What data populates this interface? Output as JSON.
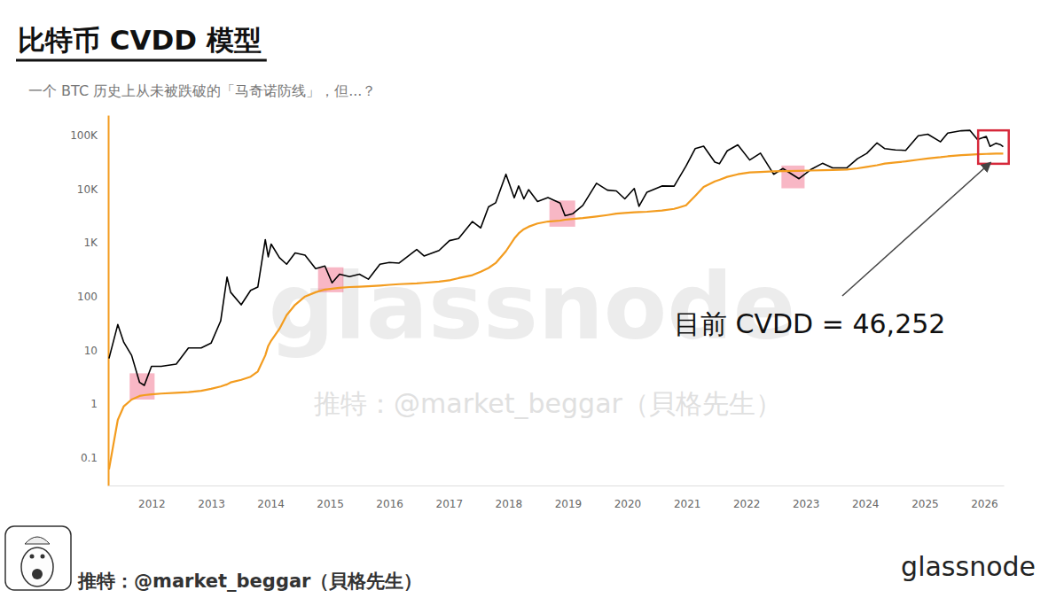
{
  "chart_data": {
    "type": "line",
    "title": "比特币 CVDD 模型",
    "subtitle": "一个 BTC 历史上从未被跌破的「马奇诺防线」，但...？",
    "annotation": "目前 CVDD = 46,252",
    "watermarks": [
      "glassnode",
      "推特：@market_beggar（貝格先生）"
    ],
    "footer": {
      "credit": "推特：@market_beggar（貝格先生）",
      "logo": "glassnode"
    },
    "log": "y",
    "grid": false,
    "xlim": [
      "2011-04-10",
      "2026-05-01"
    ],
    "xticks": [
      {
        "value": "2012-01-01",
        "label": "2012"
      },
      {
        "value": "2013-01-01",
        "label": "2013"
      },
      {
        "value": "2014-01-01",
        "label": "2014"
      },
      {
        "value": "2015-01-01",
        "label": "2015"
      },
      {
        "value": "2016-01-01",
        "label": "2016"
      },
      {
        "value": "2017-01-01",
        "label": "2017"
      },
      {
        "value": "2018-01-01",
        "label": "2018"
      },
      {
        "value": "2019-01-01",
        "label": "2019"
      },
      {
        "value": "2020-01-01",
        "label": "2020"
      },
      {
        "value": "2021-01-01",
        "label": "2021"
      },
      {
        "value": "2022-01-01",
        "label": "2022"
      },
      {
        "value": "2023-01-01",
        "label": "2023"
      },
      {
        "value": "2024-01-01",
        "label": "2024"
      },
      {
        "value": "2025-01-01",
        "label": "2025"
      },
      {
        "value": "2026-01-01",
        "label": "2026"
      }
    ],
    "ylim": [
      0.03,
      240000
    ],
    "yticks": [
      0.1,
      1,
      10,
      100,
      {
        "value": 1000,
        "label": "1K"
      },
      {
        "value": 10000,
        "label": "10K"
      },
      {
        "value": 100000,
        "label": "100K"
      }
    ],
    "x": [
      "2011-04-15",
      "2011-06-08",
      "2011-07-15",
      "2011-09-01",
      "2011-10-20",
      "2011-11-18",
      "2012-01-01",
      "2012-03-01",
      "2012-06-01",
      "2012-08-15",
      "2012-11-01",
      "2013-01-01",
      "2013-03-01",
      "2013-04-09",
      "2013-05-01",
      "2013-07-05",
      "2013-09-01",
      "2013-10-15",
      "2013-11-30",
      "2013-12-18",
      "2014-01-05",
      "2014-02-25",
      "2014-04-10",
      "2014-06-01",
      "2014-08-01",
      "2014-10-05",
      "2014-12-01",
      "2015-01-14",
      "2015-03-01",
      "2015-05-01",
      "2015-07-01",
      "2015-08-25",
      "2015-11-04",
      "2016-01-01",
      "2016-03-01",
      "2016-06-17",
      "2016-08-01",
      "2016-11-01",
      "2017-01-04",
      "2017-03-01",
      "2017-05-25",
      "2017-07-15",
      "2017-09-01",
      "2017-10-15",
      "2017-12-17",
      "2018-02-06",
      "2018-03-05",
      "2018-04-06",
      "2018-05-05",
      "2018-06-29",
      "2018-09-01",
      "2018-11-15",
      "2018-12-15",
      "2019-02-01",
      "2019-04-03",
      "2019-06-26",
      "2019-09-01",
      "2019-10-26",
      "2019-12-17",
      "2020-02-13",
      "2020-03-13",
      "2020-05-01",
      "2020-08-01",
      "2020-10-15",
      "2020-12-27",
      "2021-02-21",
      "2021-04-14",
      "2021-06-22",
      "2021-07-20",
      "2021-09-06",
      "2021-11-10",
      "2022-01-22",
      "2022-03-29",
      "2022-06-18",
      "2022-08-14",
      "2022-11-21",
      "2023-01-31",
      "2023-04-14",
      "2023-06-15",
      "2023-09-11",
      "2023-11-15",
      "2024-01-11",
      "2024-03-14",
      "2024-05-01",
      "2024-07-05",
      "2024-09-06",
      "2024-11-22",
      "2025-01-20",
      "2025-04-08",
      "2025-05-22",
      "2025-08-14",
      "2025-10-06",
      "2025-11-21",
      "2026-01-14",
      "2026-02-06",
      "2026-03-15",
      "2026-04-10",
      "2026-04-28"
    ],
    "series": [
      {
        "color": "#000000",
        "values": [
          7,
          30,
          14,
          8,
          2.5,
          2.2,
          5,
          5,
          5.5,
          11,
          11,
          13.5,
          35,
          230,
          120,
          70,
          130,
          150,
          1150,
          550,
          950,
          530,
          400,
          650,
          590,
          330,
          370,
          180,
          260,
          235,
          260,
          210,
          400,
          430,
          420,
          750,
          570,
          720,
          1100,
          1200,
          2500,
          1900,
          4700,
          5600,
          19000,
          6900,
          11500,
          6600,
          9800,
          5900,
          7000,
          5500,
          3200,
          3500,
          5000,
          12900,
          9600,
          9300,
          6600,
          10300,
          4800,
          8800,
          11500,
          11400,
          27000,
          57000,
          63500,
          32000,
          29800,
          52000,
          67000,
          35000,
          47000,
          19000,
          24300,
          15700,
          23100,
          30400,
          25000,
          25000,
          37000,
          46500,
          73000,
          57000,
          54000,
          53000,
          99000,
          106000,
          76500,
          111000,
          123000,
          125000,
          84000,
          96000,
          63000,
          72000,
          68000,
          62000
        ]
      },
      {
        "color": "#f39c1f",
        "values": [
          0.06,
          0.5,
          0.9,
          1.2,
          1.4,
          1.45,
          1.5,
          1.55,
          1.6,
          1.65,
          1.75,
          1.9,
          2.1,
          2.3,
          2.5,
          2.8,
          3.2,
          4,
          8,
          12,
          15,
          25,
          45,
          70,
          100,
          120,
          135,
          140,
          145,
          150,
          152,
          155,
          160,
          165,
          170,
          175,
          180,
          190,
          200,
          220,
          250,
          290,
          340,
          420,
          700,
          1200,
          1500,
          1800,
          2000,
          2300,
          2500,
          2600,
          2700,
          2800,
          2900,
          3100,
          3300,
          3500,
          3600,
          3700,
          3750,
          3800,
          4000,
          4300,
          5000,
          7500,
          11000,
          14000,
          15000,
          17000,
          19000,
          20500,
          21000,
          21500,
          21800,
          22000,
          22300,
          22600,
          22800,
          23200,
          24500,
          26000,
          28000,
          30000,
          31500,
          33000,
          35500,
          37500,
          39500,
          41000,
          43000,
          44000,
          44800,
          45500,
          45800,
          46000,
          46150,
          46252
        ]
      }
    ],
    "highlights": [
      {
        "x": [
          "2011-08-20",
          "2012-01-20"
        ],
        "y": [
          1.2,
          3.7
        ]
      },
      {
        "x": [
          "2014-10-20",
          "2015-03-25"
        ],
        "y": [
          120,
          350
        ]
      },
      {
        "x": [
          "2018-09-10",
          "2019-02-15"
        ],
        "y": [
          2000,
          6150
        ]
      },
      {
        "x": [
          "2022-08-05",
          "2022-12-25"
        ],
        "y": [
          10400,
          27600
        ]
      }
    ],
    "current_box": {
      "x": [
        "2025-11-25",
        "2026-06-01"
      ],
      "y": [
        29800,
        125000
      ]
    }
  }
}
